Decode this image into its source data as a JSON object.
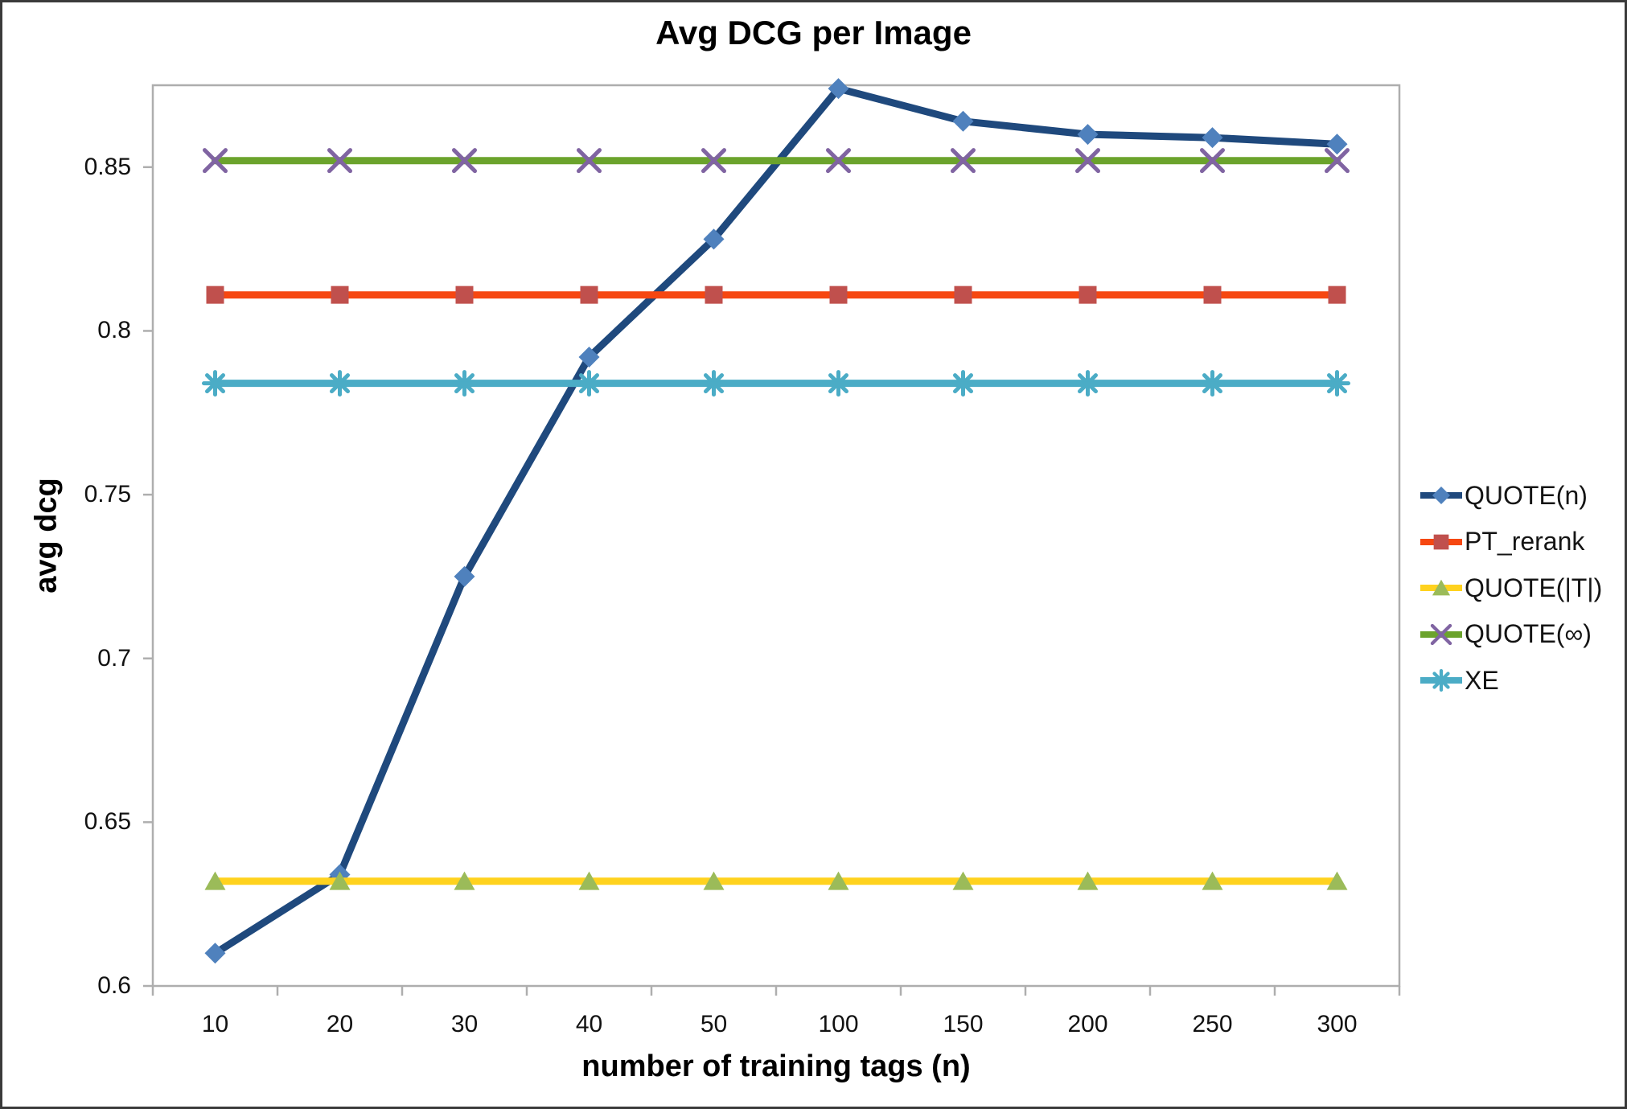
{
  "chart_data": {
    "type": "line",
    "title": "Avg DCG per Image",
    "xlabel": "number of training tags (n)",
    "ylabel": "avg dcg",
    "categories": [
      "10",
      "20",
      "30",
      "40",
      "50",
      "100",
      "150",
      "200",
      "250",
      "300"
    ],
    "ylim": [
      0.6,
      0.875
    ],
    "yticks": [
      0.6,
      0.65,
      0.7,
      0.75,
      0.8,
      0.85
    ],
    "ytick_labels": [
      "0.6",
      "0.65",
      "0.7",
      "0.75",
      "0.8",
      "0.85"
    ],
    "grid": false,
    "legend_position": "right",
    "series": [
      {
        "name": "QUOTE(n)",
        "values": [
          0.61,
          0.634,
          0.725,
          0.792,
          0.828,
          0.874,
          0.864,
          0.86,
          0.859,
          0.857
        ],
        "line_color": "#1F497D",
        "marker": "diamond",
        "marker_color": "#4F81BD"
      },
      {
        "name": "PT_rerank",
        "values": [
          0.811,
          0.811,
          0.811,
          0.811,
          0.811,
          0.811,
          0.811,
          0.811,
          0.811,
          0.811
        ],
        "line_color": "#F64711",
        "marker": "square",
        "marker_color": "#C0504D"
      },
      {
        "name": "QUOTE(|T|)",
        "values": [
          0.632,
          0.632,
          0.632,
          0.632,
          0.632,
          0.632,
          0.632,
          0.632,
          0.632,
          0.632
        ],
        "line_color": "#FFD21E",
        "marker": "triangle",
        "marker_color": "#9BBB59"
      },
      {
        "name": "QUOTE(∞)",
        "values": [
          0.852,
          0.852,
          0.852,
          0.852,
          0.852,
          0.852,
          0.852,
          0.852,
          0.852,
          0.852
        ],
        "line_color": "#6BA32C",
        "marker": "x",
        "marker_color": "#8064A2"
      },
      {
        "name": "XE",
        "values": [
          0.784,
          0.784,
          0.784,
          0.784,
          0.784,
          0.784,
          0.784,
          0.784,
          0.784,
          0.784
        ],
        "line_color": "#4BACC6",
        "marker": "asterisk",
        "marker_color": "#4BACC6"
      }
    ]
  }
}
